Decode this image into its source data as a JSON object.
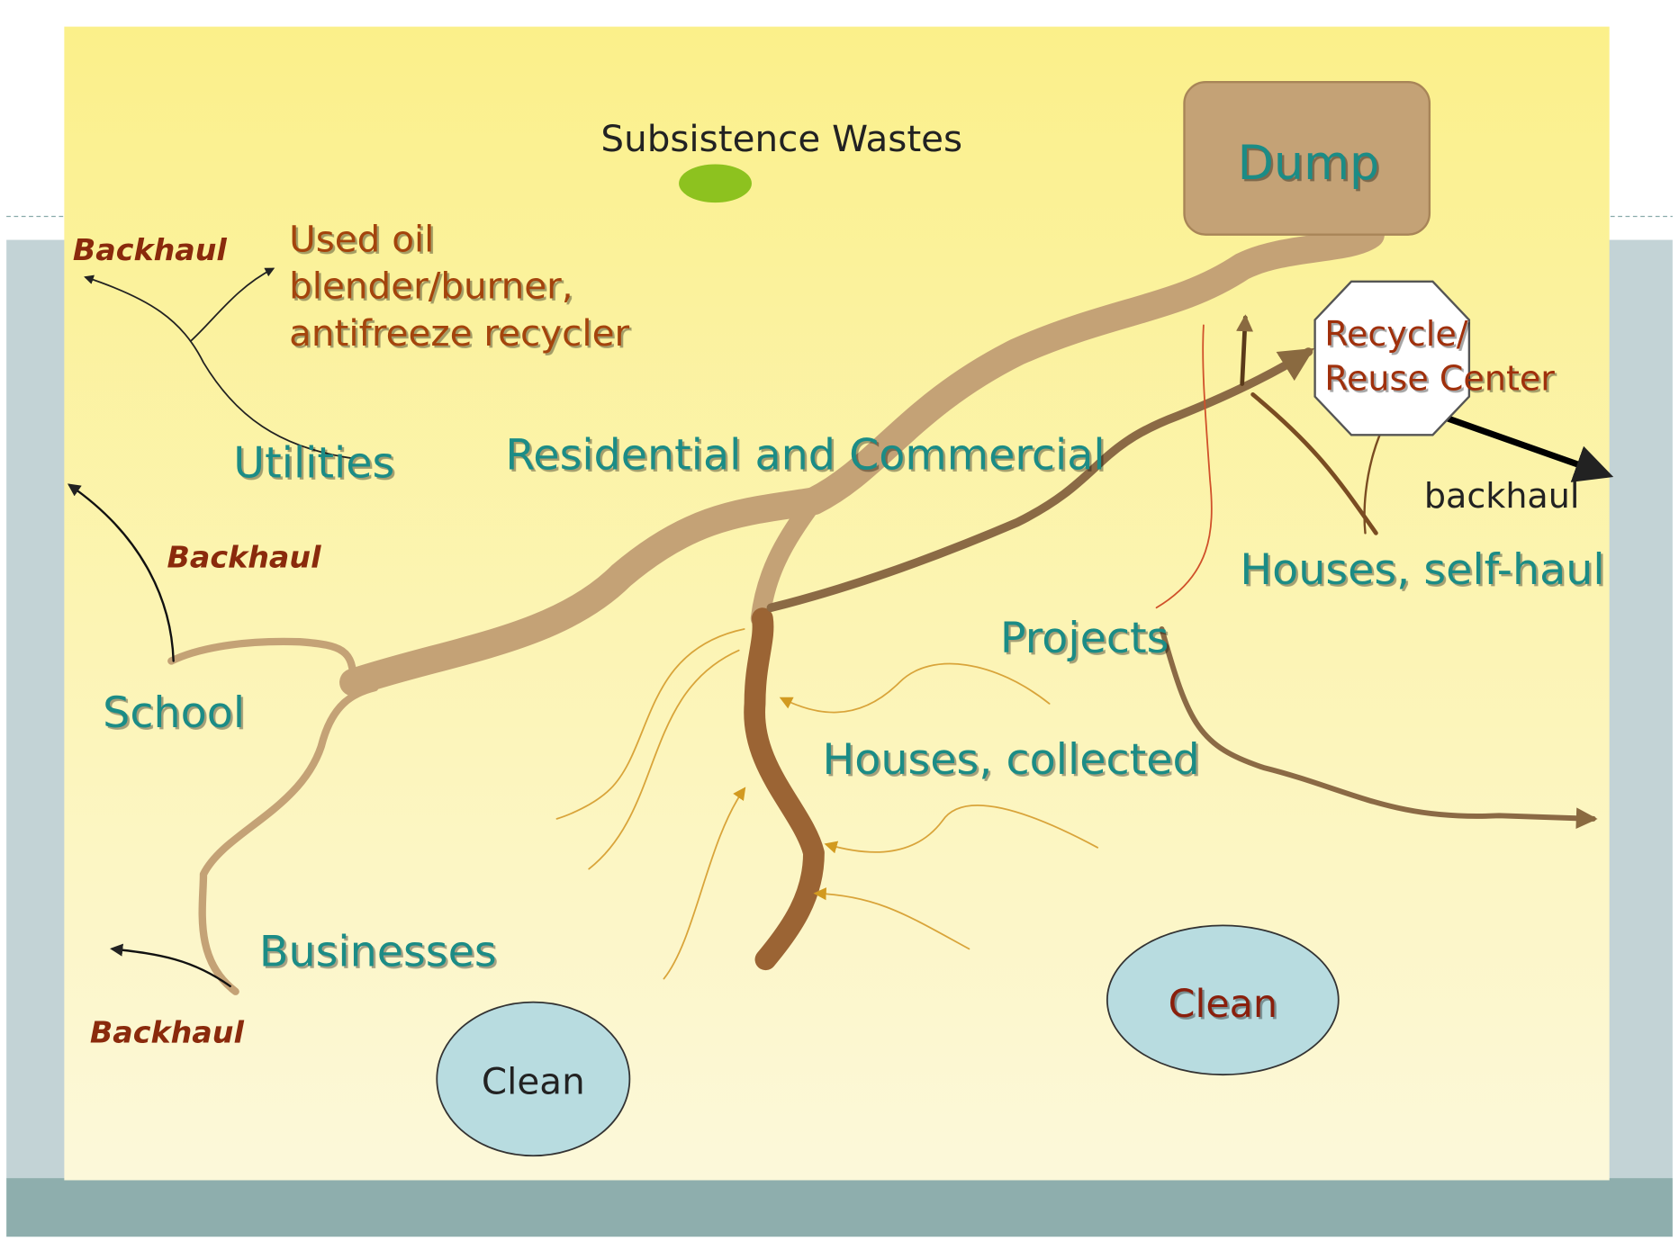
{
  "nodes": [
    {
      "label": "Subsistence  Wastes"
    },
    {
      "label": "Dump"
    },
    {
      "lines": [
        "Recycle/",
        "Reuse Center"
      ]
    },
    {
      "label": "backhaul"
    },
    {
      "label": "Houses, self-haul"
    },
    {
      "label": "Projects"
    },
    {
      "label": "Houses, collected"
    },
    {
      "label": "Residential and Commercial"
    },
    {
      "label": "Utilities"
    },
    {
      "lines": [
        "Used oil",
        "blender/burner,",
        "antifreeze recycler"
      ]
    },
    {
      "label": "Backhaul"
    },
    {
      "label": "Backhaul"
    },
    {
      "label": "School"
    },
    {
      "label": "Businesses"
    },
    {
      "label": "Backhaul"
    },
    {
      "label": "Clean"
    },
    {
      "label": "Clean"
    }
  ]
}
